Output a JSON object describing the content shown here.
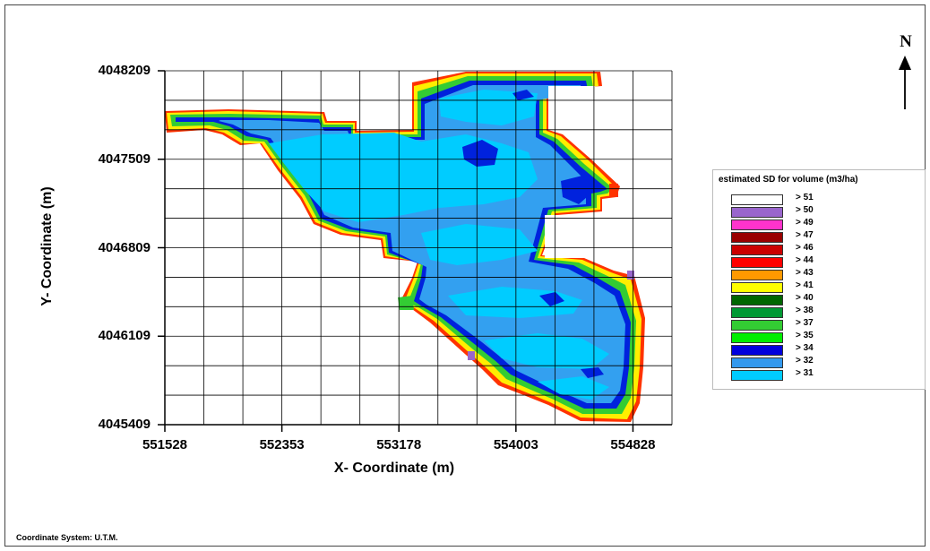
{
  "axes": {
    "x_label": "X- Coordinate (m)",
    "y_label": "Y- Coordinate (m)",
    "x_ticks": [
      "551528",
      "552353",
      "553178",
      "554003",
      "554828"
    ],
    "y_ticks": [
      "4048209",
      "4047509",
      "4046809",
      "4046109",
      "4045409"
    ]
  },
  "north_arrow": {
    "label": "N",
    "icon": "north-arrow-icon"
  },
  "legend": {
    "title": "estimated SD for volume (m3/ha)",
    "items": [
      {
        "label": "> 51",
        "color": "#ffffff"
      },
      {
        "label": "> 50",
        "color": "#9966cc"
      },
      {
        "label": "> 49",
        "color": "#ff33cc"
      },
      {
        "label": "> 47",
        "color": "#990000"
      },
      {
        "label": "> 46",
        "color": "#cc0000"
      },
      {
        "label": "> 44",
        "color": "#ff0000"
      },
      {
        "label": "> 43",
        "color": "#ff9900"
      },
      {
        "label": "> 41",
        "color": "#ffff00"
      },
      {
        "label": "> 40",
        "color": "#006600"
      },
      {
        "label": "> 38",
        "color": "#009933"
      },
      {
        "label": "> 37",
        "color": "#33cc33"
      },
      {
        "label": "> 35",
        "color": "#00ee00"
      },
      {
        "label": "> 34",
        "color": "#0000dd"
      },
      {
        "label": "> 32",
        "color": "#3399ee"
      },
      {
        "label": "> 31",
        "color": "#00ccff"
      }
    ]
  },
  "footer": {
    "coordinate_system": "Coordinate System: U.T.M."
  }
}
